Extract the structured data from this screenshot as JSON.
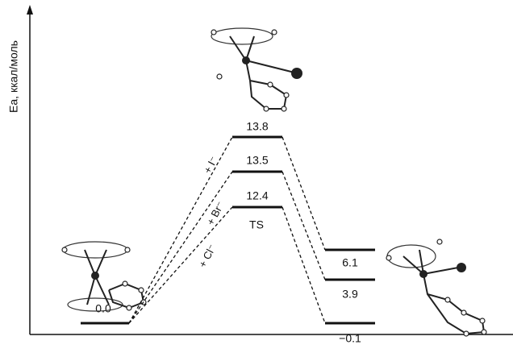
{
  "axis": {
    "label": "Eа, ккал/моль"
  },
  "reactant": {
    "label": "0.0"
  },
  "ts_label": "TS",
  "paths": [
    {
      "reagent": "+ I⁻",
      "ts": "13.8",
      "product": "6.1"
    },
    {
      "reagent": "+ Br⁻",
      "ts": "13.5",
      "product": "3.9"
    },
    {
      "reagent": "+ Cl⁻",
      "ts": "12.4",
      "product": "−0.1"
    }
  ]
}
